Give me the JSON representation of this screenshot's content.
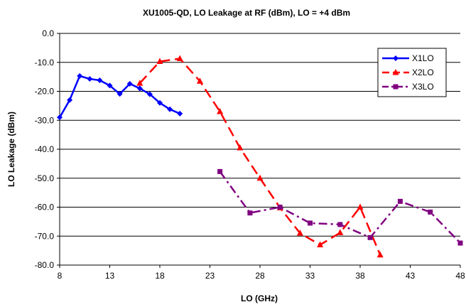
{
  "chart_data": {
    "type": "line",
    "title": "XU1005-QD, LO Leakage at RF (dBm), LO = +4 dBm",
    "xlabel": "LO (GHz)",
    "ylabel": "LO Leakage (dBm)",
    "xlim": [
      8,
      48
    ],
    "ylim": [
      -80,
      0
    ],
    "xticks": [
      8,
      13,
      18,
      23,
      28,
      33,
      38,
      43,
      48
    ],
    "xtick_labels": [
      "8",
      "13",
      "18",
      "23",
      "28",
      "33",
      "38",
      "43",
      "48"
    ],
    "yticks": [
      0,
      -10,
      -20,
      -30,
      -40,
      -50,
      -60,
      -70,
      -80
    ],
    "ytick_labels": [
      "0.0",
      "-10.0",
      "-20.0",
      "-30.0",
      "-40.0",
      "-50.0",
      "-60.0",
      "-70.0",
      "-80.0"
    ],
    "grid": "horizontal",
    "legend_position": "top-right",
    "series": [
      {
        "name": "X1LO",
        "color": "#0000FF",
        "marker": "diamond",
        "line_style": "solid",
        "x": [
          8,
          9,
          10,
          11,
          12,
          13,
          14,
          15,
          16,
          17,
          18,
          19,
          20
        ],
        "y": [
          -29,
          -23,
          -14.7,
          -15.7,
          -16.2,
          -18,
          -20.9,
          -17.4,
          -19,
          -21,
          -24,
          -26.2,
          -27.7
        ]
      },
      {
        "name": "X2LO",
        "color": "#FF0000",
        "marker": "triangle",
        "line_style": "dashed",
        "x": [
          16,
          18,
          20,
          22,
          24,
          26,
          28,
          30,
          32,
          34,
          36,
          38,
          40
        ],
        "y": [
          -17.2,
          -9.7,
          -8.7,
          -16.5,
          -27,
          -39.5,
          -50,
          -60.2,
          -69,
          -73,
          -68.8,
          -60,
          -76.5
        ]
      },
      {
        "name": "X3LO",
        "color": "#800080",
        "marker": "square",
        "line_style": "dash-dot",
        "x": [
          24,
          27,
          30,
          33,
          36,
          39,
          42,
          45,
          48
        ],
        "y": [
          -47.7,
          -62,
          -60,
          -65.5,
          -66,
          -70.5,
          -58,
          -61.7,
          -72.4
        ]
      }
    ]
  }
}
